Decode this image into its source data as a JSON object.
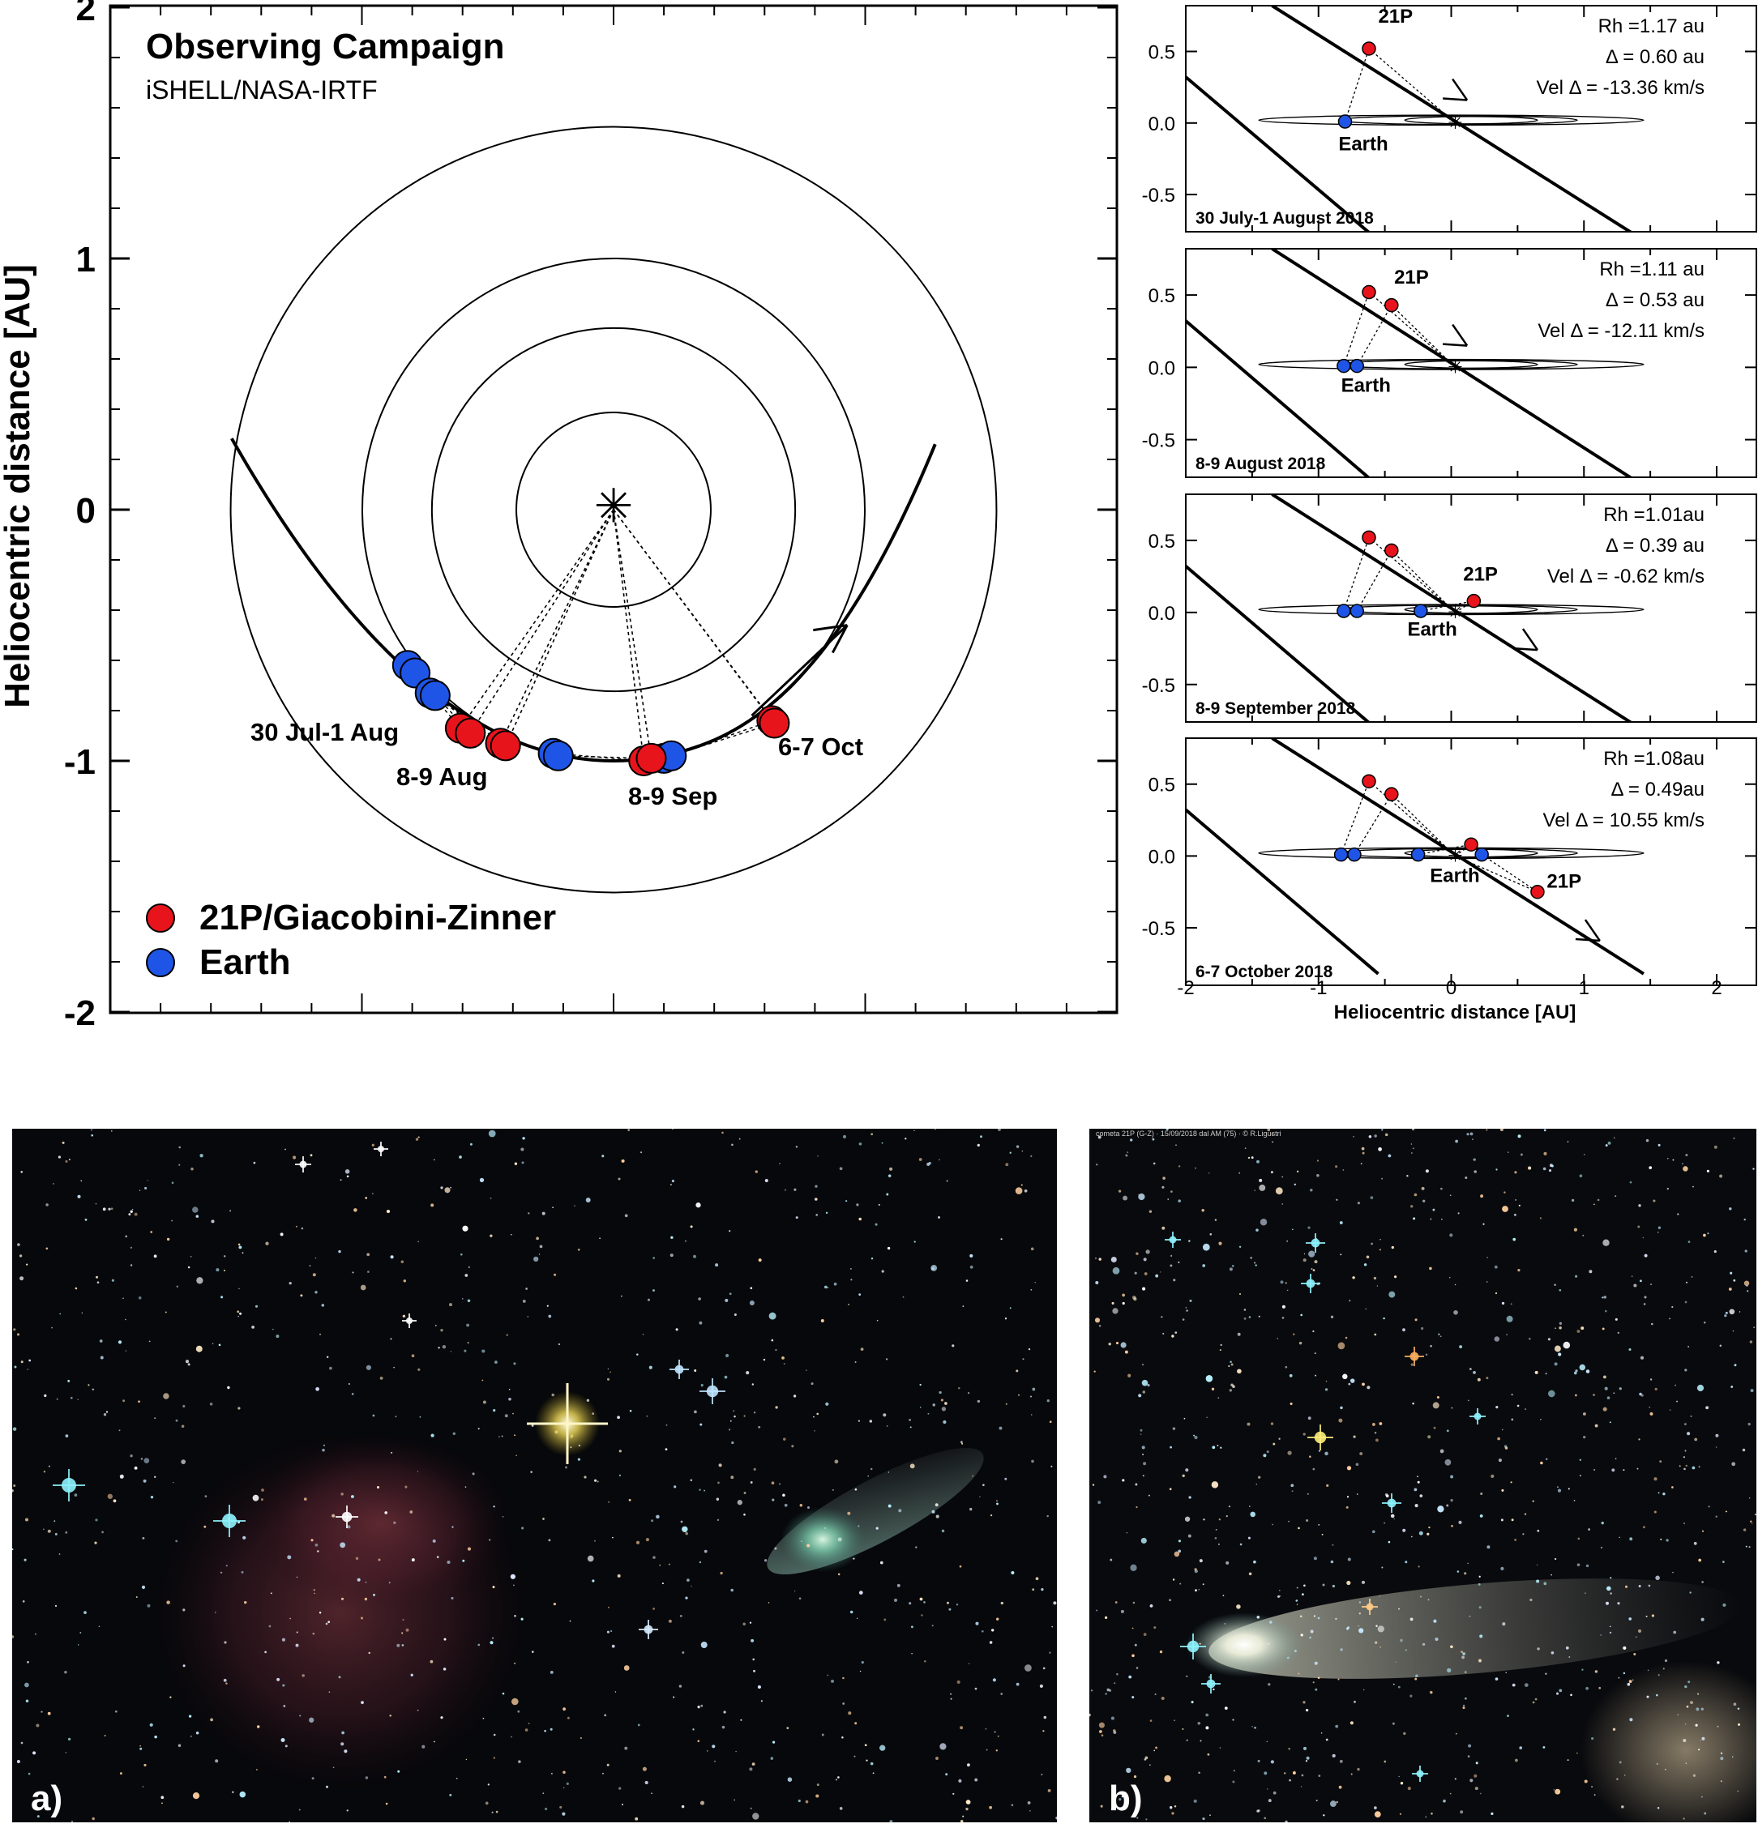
{
  "main_plot": {
    "title": "Observing Campaign",
    "subtitle": "iSHELL/NASA-IRTF",
    "ylabel": "Heliocentric distance [AU]",
    "yticks": [
      "2",
      "1",
      "0",
      "-1",
      "-2"
    ],
    "date_labels": [
      "30 Jul-1 Aug",
      "8-9 Aug",
      "8-9 Sep",
      "6-7 Oct"
    ],
    "legend": [
      {
        "label": "21P/Giacobini-Zinner",
        "color": "#e8141c"
      },
      {
        "label": "Earth",
        "color": "#1f55e6"
      }
    ],
    "sun_symbol": "✳"
  },
  "panels": [
    {
      "date": "30 July-1 August 2018",
      "rh": "Rh =1.17 au",
      "delta": "Δ = 0.60 au",
      "vel": "Vel Δ = -13.36 km/s",
      "comet_label": "21P",
      "earth_label": "Earth"
    },
    {
      "date": "8-9 August 2018",
      "rh": "Rh =1.11 au",
      "delta": "Δ = 0.53 au",
      "vel": "Vel Δ = -12.11 km/s",
      "comet_label": "21P",
      "earth_label": "Earth"
    },
    {
      "date": "8-9 September 2018",
      "rh": "Rh =1.01au",
      "delta": "Δ = 0.39 au",
      "vel": "Vel Δ = -0.62 km/s",
      "comet_label": "21P",
      "earth_label": "Earth"
    },
    {
      "date": "6-7 October 2018",
      "rh": "Rh =1.08au",
      "delta": "Δ = 0.49au",
      "vel": "Vel Δ = 10.55  km/s",
      "comet_label": "21P",
      "earth_label": "Earth"
    }
  ],
  "panel_yticks": [
    "0.5",
    "0.0",
    "-0.5"
  ],
  "panel_xticks": [
    "-2",
    "-1",
    "0",
    "1",
    "2"
  ],
  "panel_xlabel": "Heliocentric distance [AU]",
  "photos": [
    {
      "label": "a)",
      "caption": "comet 21P near a red nebula"
    },
    {
      "label": "b)",
      "caption": "cometa 21P (G-Z) 15/09/2018 dal AM (75) © R.Ligustri",
      "credit": "cometa 21P (G-Z) · 15/09/2018 dal AM (75) · © R.Ligustri"
    }
  ],
  "colors": {
    "comet": "#e8141c",
    "earth": "#1f55e6",
    "ink": "#000000"
  }
}
